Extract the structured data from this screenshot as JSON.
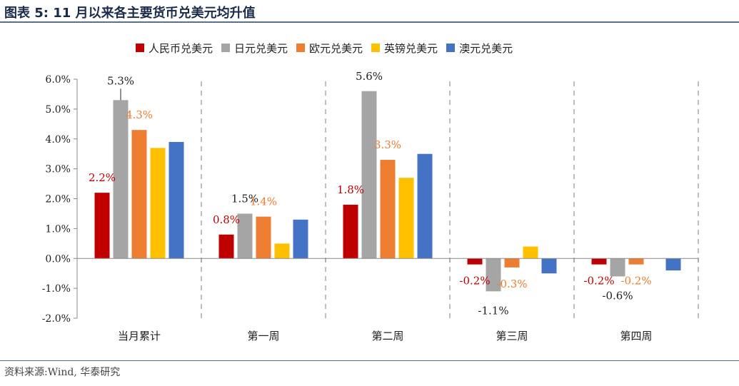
{
  "title": "图表 5:  11 月以来各主要货币兑美元均升值",
  "source": "资料来源:Wind, 华泰研究",
  "chart_data": {
    "type": "bar",
    "title": "11 月以来各主要货币兑美元均升值",
    "categories": [
      "当月累计",
      "第一周",
      "第二周",
      "第三周",
      "第四周"
    ],
    "series": [
      {
        "name": "人民币兑美元",
        "color": "#c00000",
        "values": [
          2.2,
          0.8,
          1.8,
          -0.2,
          -0.2
        ]
      },
      {
        "name": "日元兑美元",
        "color": "#a5a5a5",
        "values": [
          5.3,
          1.5,
          5.6,
          -1.1,
          -0.6
        ]
      },
      {
        "name": "欧元兑美元",
        "color": "#ed7d31",
        "values": [
          4.3,
          1.4,
          3.3,
          -0.3,
          -0.2
        ]
      },
      {
        "name": "英镑兑美元",
        "color": "#ffc000",
        "values": [
          3.7,
          0.5,
          2.7,
          0.4,
          0.0
        ]
      },
      {
        "name": "澳元兑美元",
        "color": "#4472c4",
        "values": [
          3.9,
          1.3,
          3.5,
          -0.5,
          -0.4
        ]
      }
    ],
    "data_labels": [
      {
        "category": 0,
        "series": 0,
        "text": "2.2%",
        "color": "#c00000"
      },
      {
        "category": 0,
        "series": 1,
        "text": "5.3%",
        "color": "#222222"
      },
      {
        "category": 0,
        "series": 2,
        "text": "4.3%",
        "color": "#ed7d31"
      },
      {
        "category": 1,
        "series": 0,
        "text": "0.8%",
        "color": "#c00000"
      },
      {
        "category": 1,
        "series": 1,
        "text": "1.5%",
        "color": "#222222"
      },
      {
        "category": 1,
        "series": 2,
        "text": "1.4%",
        "color": "#ed7d31"
      },
      {
        "category": 2,
        "series": 0,
        "text": "1.8%",
        "color": "#c00000"
      },
      {
        "category": 2,
        "series": 1,
        "text": "5.6%",
        "color": "#222222"
      },
      {
        "category": 2,
        "series": 2,
        "text": "3.3%",
        "color": "#ed7d31"
      },
      {
        "category": 3,
        "series": 0,
        "text": "-0.2%",
        "color": "#c00000"
      },
      {
        "category": 3,
        "series": 1,
        "text": "-1.1%",
        "color": "#222222"
      },
      {
        "category": 3,
        "series": 2,
        "text": "-0.3%",
        "color": "#ed7d31"
      },
      {
        "category": 4,
        "series": 0,
        "text": "-0.2%",
        "color": "#c00000"
      },
      {
        "category": 4,
        "series": 1,
        "text": "-0.6%",
        "color": "#222222"
      },
      {
        "category": 4,
        "series": 2,
        "text": "-0.2%",
        "color": "#ed7d31"
      }
    ],
    "ylim": [
      -2.0,
      6.0
    ],
    "yticks": [
      "6.0%",
      "5.0%",
      "4.0%",
      "3.0%",
      "2.0%",
      "1.0%",
      "0.0%",
      "-1.0%",
      "-2.0%"
    ],
    "ytick_values": [
      6,
      5,
      4,
      3,
      2,
      1,
      0,
      -1,
      -2
    ],
    "legend": "top",
    "grid": false
  }
}
